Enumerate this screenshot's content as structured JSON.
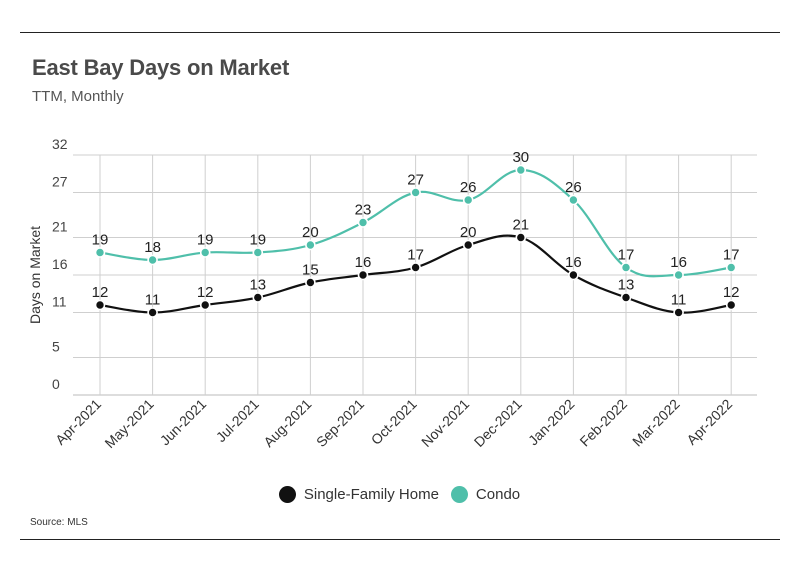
{
  "header": {
    "title": "East Bay Days on Market",
    "subtitle": "TTM, Monthly"
  },
  "footer": {
    "source": "Source:  MLS"
  },
  "legend": {
    "items": [
      {
        "label": "Single-Family Home",
        "color": "#111111"
      },
      {
        "label": "Condo",
        "color": "#4fbfaa"
      }
    ]
  },
  "chart_data": {
    "type": "line",
    "title": "East Bay Days on Market",
    "subtitle": "TTM, Monthly",
    "xlabel": "",
    "ylabel": "Days on Market",
    "categories": [
      "Apr-2021",
      "May-2021",
      "Jun-2021",
      "Jul-2021",
      "Aug-2021",
      "Sep-2021",
      "Oct-2021",
      "Nov-2021",
      "Dec-2021",
      "Jan-2022",
      "Feb-2022",
      "Mar-2022",
      "Apr-2022"
    ],
    "yticks": [
      "0",
      "5",
      "11",
      "16",
      "21",
      "27",
      "32"
    ],
    "ylim": [
      0,
      32
    ],
    "grid": true,
    "legend_position": "bottom",
    "series": [
      {
        "name": "Single-Family Home",
        "color": "#111111",
        "values": [
          12,
          11,
          12,
          13,
          15,
          16,
          17,
          20,
          21,
          16,
          13,
          11,
          12
        ]
      },
      {
        "name": "Condo",
        "color": "#4fbfaa",
        "values": [
          19,
          18,
          19,
          19,
          20,
          23,
          27,
          26,
          30,
          26,
          17,
          16,
          17
        ]
      }
    ]
  }
}
